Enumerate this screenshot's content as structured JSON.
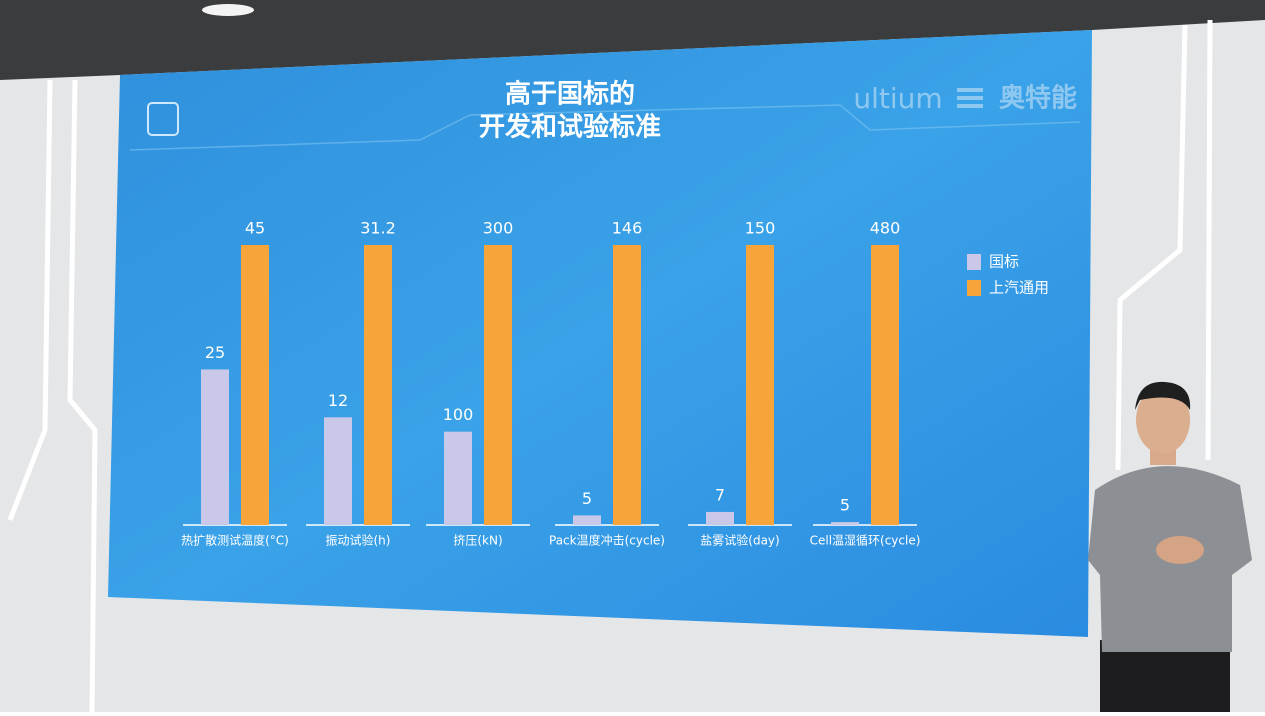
{
  "slide": {
    "logo": "ultium",
    "brand": "奥特能"
  },
  "chart_data": {
    "type": "bar",
    "title": "高于国标的",
    "subtitle": "开发和试验标准",
    "categories": [
      "热扩散测试温度(°C)",
      "振动试验(h)",
      "挤压(kN)",
      "Pack温度冲击(cycle)",
      "盐雾试验(day)",
      "Cell温湿循环(cycle)"
    ],
    "series": [
      {
        "name": "国标",
        "color": "#c9c8e8",
        "values": [
          25,
          12,
          100,
          5,
          7,
          5
        ]
      },
      {
        "name": "上汽通用",
        "color": "#f7a43a",
        "values": [
          45,
          31.2,
          300,
          146,
          150,
          480
        ]
      }
    ],
    "legend": "right"
  }
}
